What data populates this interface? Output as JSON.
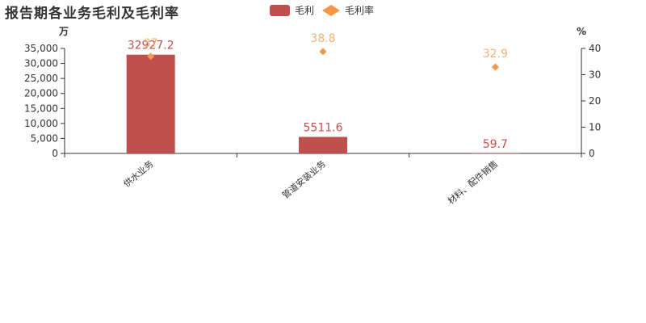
{
  "chart_data": {
    "type": "bar",
    "title": "报告期各业务毛利及毛利率",
    "categories": [
      "供水业务",
      "管道安装业务",
      "材料、配件销售"
    ],
    "series": [
      {
        "name": "毛利",
        "type": "bar",
        "axis": "left",
        "color": "#c0504d",
        "values": [
          32927.2,
          5511.6,
          59.7
        ]
      },
      {
        "name": "毛利率",
        "type": "scatter",
        "axis": "right",
        "color": "#f79646",
        "values": [
          37,
          38.8,
          32.9
        ]
      }
    ],
    "y_left": {
      "unit": "万",
      "min": 0,
      "max": 35000,
      "ticks": [
        "0",
        "5,000",
        "10,000",
        "15,000",
        "20,000",
        "25,000",
        "30,000",
        "35,000"
      ],
      "tick_values": [
        0,
        5000,
        10000,
        15000,
        20000,
        25000,
        30000,
        35000
      ]
    },
    "y_right": {
      "unit": "%",
      "min": 0,
      "max": 40,
      "ticks": [
        "0",
        "10",
        "20",
        "30",
        "40"
      ],
      "tick_values": [
        0,
        10,
        20,
        30,
        40
      ]
    },
    "legend_placement": "top-center",
    "grid": false
  }
}
